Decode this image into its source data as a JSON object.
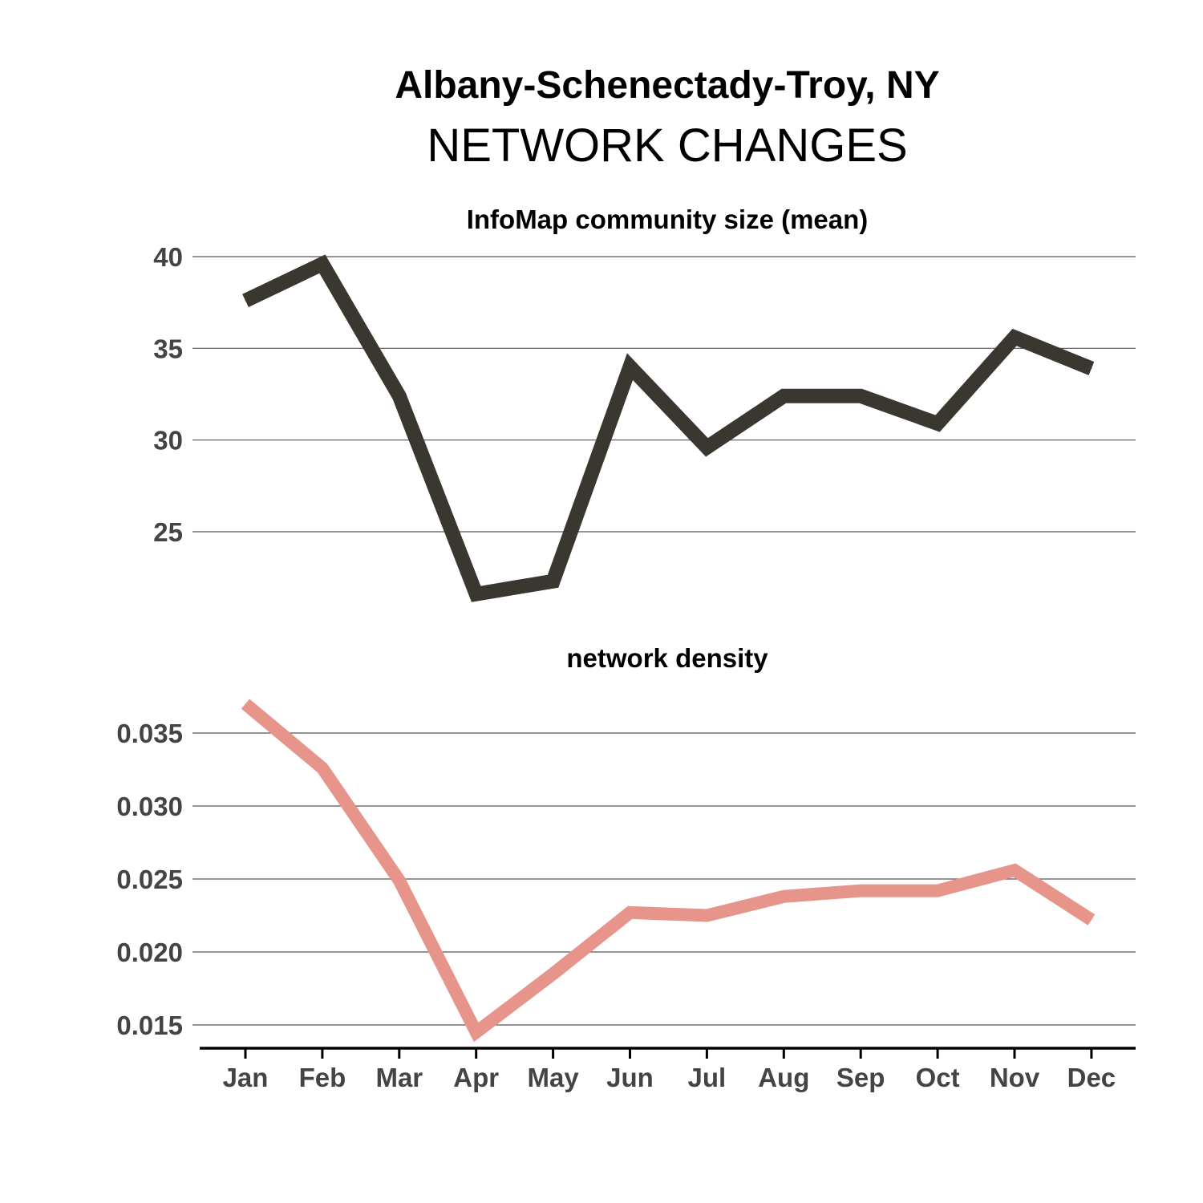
{
  "title": "Albany-Schenectady-Troy, NY",
  "subtitle": "NETWORK CHANGES",
  "chart_data": [
    {
      "type": "line",
      "title": "InfoMap community size (mean)",
      "categories": [
        "Jan",
        "Feb",
        "Mar",
        "Apr",
        "May",
        "Jun",
        "Jul",
        "Aug",
        "Sep",
        "Oct",
        "Nov",
        "Dec"
      ],
      "series": [
        {
          "values": [
            37.6,
            39.6,
            32.4,
            21.6,
            22.3,
            34.0,
            29.6,
            32.4,
            32.4,
            30.9,
            35.6,
            33.9
          ],
          "color": "#3a3730"
        }
      ],
      "yticks": [
        25,
        30,
        35,
        40
      ],
      "ytick_labels": [
        "25",
        "30",
        "35",
        "40"
      ],
      "ylim": [
        21.0,
        40.0
      ],
      "grid": true,
      "legend": "none"
    },
    {
      "type": "line",
      "title": "network density",
      "categories": [
        "Jan",
        "Feb",
        "Mar",
        "Apr",
        "May",
        "Jun",
        "Jul",
        "Aug",
        "Sep",
        "Oct",
        "Nov",
        "Dec"
      ],
      "series": [
        {
          "values": [
            0.037,
            0.0326,
            0.0249,
            0.0145,
            0.0185,
            0.0227,
            0.0225,
            0.0238,
            0.0242,
            0.0242,
            0.0256,
            0.0222
          ],
          "color": "#e7948a"
        }
      ],
      "yticks": [
        0.015,
        0.02,
        0.025,
        0.03,
        0.035
      ],
      "ytick_labels": [
        "0.015",
        "0.020",
        "0.025",
        "0.030",
        "0.035"
      ],
      "ylim": [
        0.0135,
        0.038
      ],
      "xtick_labels": [
        "Jan",
        "Feb",
        "Mar",
        "Apr",
        "May",
        "Jun",
        "Jul",
        "Aug",
        "Sep",
        "Oct",
        "Nov",
        "Dec"
      ],
      "grid": true,
      "legend": "none"
    }
  ]
}
